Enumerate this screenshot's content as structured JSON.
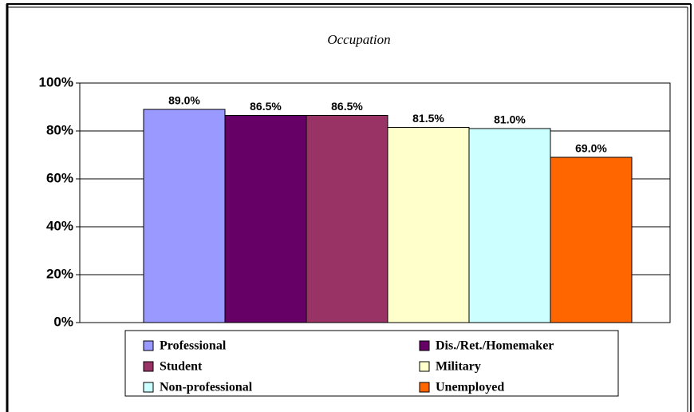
{
  "chart_data": {
    "type": "bar",
    "title": "Occupation",
    "series": [
      {
        "name": "Professional",
        "color": "#9999ff",
        "values": [
          89.0
        ],
        "value_labels": [
          "89.0%"
        ]
      },
      {
        "name": "Dis./Ret./Homemaker",
        "color": "#660066",
        "values": [
          86.5
        ],
        "value_labels": [
          "86.5%"
        ]
      },
      {
        "name": "Student",
        "color": "#993366",
        "values": [
          86.5
        ],
        "value_labels": [
          "86.5%"
        ]
      },
      {
        "name": "Military",
        "color": "#ffffcc",
        "values": [
          81.5
        ],
        "value_labels": [
          "81.5%"
        ]
      },
      {
        "name": "Non-professional",
        "color": "#ccffff",
        "values": [
          81.0
        ],
        "value_labels": [
          "81.0%"
        ]
      },
      {
        "name": "Unemployed",
        "color": "#ff6600",
        "values": [
          69.0
        ],
        "value_labels": [
          "69.0%"
        ]
      }
    ],
    "ylim": [
      0,
      100
    ],
    "yticks": [
      {
        "value": 0,
        "label": "0%"
      },
      {
        "value": 20,
        "label": "20%"
      },
      {
        "value": 40,
        "label": "40%"
      },
      {
        "value": 60,
        "label": "60%"
      },
      {
        "value": 80,
        "label": "80%"
      },
      {
        "value": 100,
        "label": "100%"
      }
    ],
    "grid": true,
    "legend": "bottom"
  }
}
